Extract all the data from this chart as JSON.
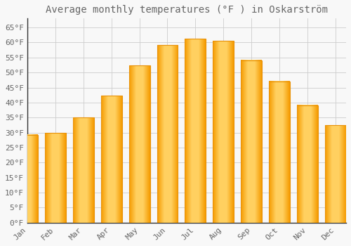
{
  "title": "Average monthly temperatures (°F ) in Oskarström",
  "months": [
    "Jan",
    "Feb",
    "Mar",
    "Apr",
    "May",
    "Jun",
    "Jul",
    "Aug",
    "Sep",
    "Oct",
    "Nov",
    "Dec"
  ],
  "values": [
    29.3,
    29.8,
    35.1,
    42.3,
    52.3,
    59.2,
    61.3,
    60.6,
    54.1,
    47.1,
    39.1,
    32.5
  ],
  "bar_color_center": "#FFB800",
  "bar_color_edge": "#F59B00",
  "background_color": "#F8F8F8",
  "grid_color": "#CCCCCC",
  "text_color": "#666666",
  "axis_color": "#333333",
  "ylim": [
    0,
    68
  ],
  "yticks": [
    0,
    5,
    10,
    15,
    20,
    25,
    30,
    35,
    40,
    45,
    50,
    55,
    60,
    65
  ],
  "ytick_labels": [
    "0°F",
    "5°F",
    "10°F",
    "15°F",
    "20°F",
    "25°F",
    "30°F",
    "35°F",
    "40°F",
    "45°F",
    "50°F",
    "55°F",
    "60°F",
    "65°F"
  ],
  "title_fontsize": 10,
  "tick_fontsize": 8,
  "font_family": "monospace",
  "bar_width": 0.75
}
